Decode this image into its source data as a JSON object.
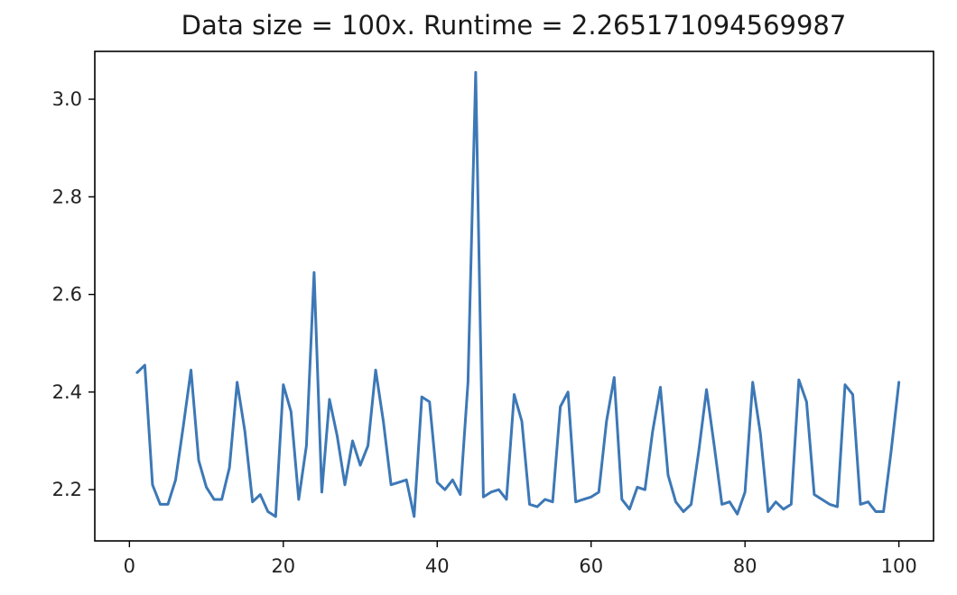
{
  "chart_data": {
    "type": "line",
    "title": "Data size = 100x. Runtime = 2.265171094569987",
    "xlabel": "",
    "ylabel": "",
    "xlim": [
      -4.5,
      104.5
    ],
    "ylim": [
      2.095,
      3.098
    ],
    "xticks": [
      0,
      20,
      40,
      60,
      80,
      100
    ],
    "yticks": [
      2.2,
      2.4,
      2.6,
      2.8,
      3.0
    ],
    "xtick_labels": [
      "0",
      "20",
      "40",
      "60",
      "80",
      "100"
    ],
    "ytick_labels": [
      "2.2",
      "2.4",
      "2.6",
      "2.8",
      "3.0"
    ],
    "grid": false,
    "series": [
      {
        "color": "#3d78b6",
        "x": [
          1,
          2,
          3,
          4,
          5,
          6,
          7,
          8,
          9,
          10,
          11,
          12,
          13,
          14,
          15,
          16,
          17,
          18,
          19,
          20,
          21,
          22,
          23,
          24,
          25,
          26,
          27,
          28,
          29,
          30,
          31,
          32,
          33,
          34,
          35,
          36,
          37,
          38,
          39,
          40,
          41,
          42,
          43,
          44,
          45,
          46,
          47,
          48,
          49,
          50,
          51,
          52,
          53,
          54,
          55,
          56,
          57,
          58,
          59,
          60,
          61,
          62,
          63,
          64,
          65,
          66,
          67,
          68,
          69,
          70,
          71,
          72,
          73,
          74,
          75,
          76,
          77,
          78,
          79,
          80,
          81,
          82,
          83,
          84,
          85,
          86,
          87,
          88,
          89,
          90,
          91,
          92,
          93,
          94,
          95,
          96,
          97,
          98,
          99,
          100
        ],
        "values": [
          2.44,
          2.455,
          2.21,
          2.17,
          2.17,
          2.22,
          2.33,
          2.445,
          2.26,
          2.205,
          2.18,
          2.18,
          2.245,
          2.42,
          2.32,
          2.175,
          2.19,
          2.155,
          2.145,
          2.415,
          2.36,
          2.18,
          2.29,
          2.645,
          2.195,
          2.385,
          2.31,
          2.21,
          2.3,
          2.25,
          2.29,
          2.445,
          2.34,
          2.21,
          2.215,
          2.22,
          2.145,
          2.39,
          2.38,
          2.215,
          2.2,
          2.22,
          2.19,
          2.42,
          3.055,
          2.185,
          2.195,
          2.2,
          2.18,
          2.395,
          2.34,
          2.17,
          2.165,
          2.18,
          2.175,
          2.37,
          2.4,
          2.175,
          2.18,
          2.185,
          2.195,
          2.34,
          2.43,
          2.18,
          2.16,
          2.205,
          2.2,
          2.32,
          2.41,
          2.23,
          2.175,
          2.155,
          2.17,
          2.28,
          2.405,
          2.29,
          2.17,
          2.175,
          2.15,
          2.195,
          2.42,
          2.315,
          2.155,
          2.175,
          2.16,
          2.17,
          2.425,
          2.38,
          2.19,
          2.18,
          2.17,
          2.165,
          2.415,
          2.395,
          2.17,
          2.175,
          2.155,
          2.155,
          2.28,
          2.42
        ]
      }
    ]
  }
}
